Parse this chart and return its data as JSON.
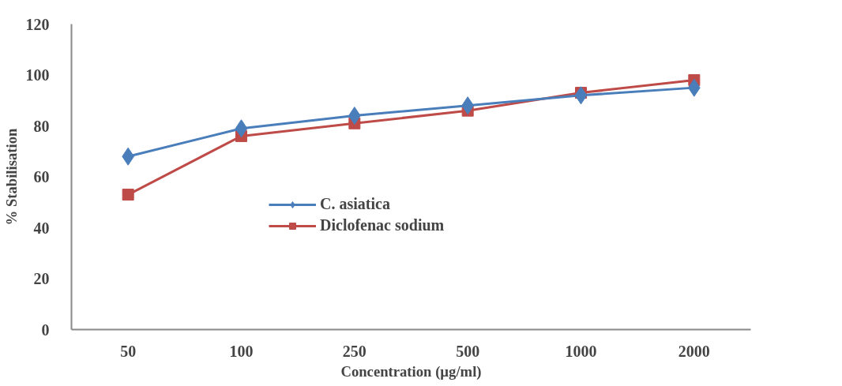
{
  "chart_data": {
    "type": "line",
    "xlabel": "Concentration (µg/ml)",
    "ylabel": "% Stabilisation",
    "categories": [
      "50",
      "100",
      "250",
      "500",
      "1000",
      "2000"
    ],
    "series": [
      {
        "name": "C. asiatica",
        "color": "#4a7ebb",
        "marker": "diamond",
        "values": [
          68,
          79,
          84,
          88,
          92,
          95
        ]
      },
      {
        "name": "Diclofenac sodium",
        "color": "#be4b48",
        "marker": "square",
        "values": [
          53,
          76,
          81,
          86,
          93,
          98
        ]
      }
    ],
    "ylim": [
      0,
      120
    ],
    "yticks": [
      0,
      20,
      40,
      60,
      80,
      100,
      120
    ],
    "grid": false,
    "legend": "center"
  }
}
